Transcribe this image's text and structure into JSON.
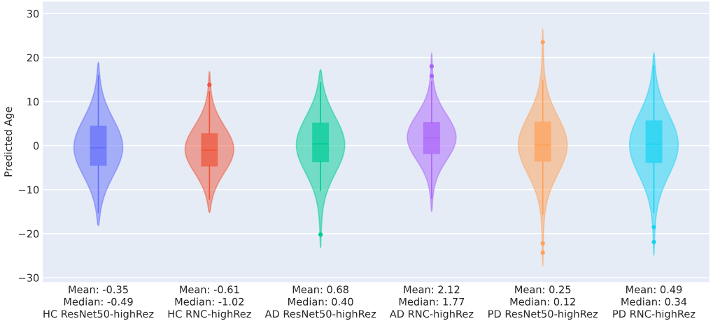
{
  "chart_data": {
    "type": "box",
    "ylabel": "Predicted Age",
    "categories": [
      "Mean: -0.35\nMedian: -0.49\nHC ResNet50-highRez",
      "Mean: -0.61\nMedian: -1.02\nHC RNC-highRez",
      "Mean: 0.68\nMedian: 0.40\nAD ResNet50-highRez",
      "Mean: 2.12\nMedian: 1.77\nAD RNC-highRez",
      "Mean: 0.25\nMedian: 0.12\nPD ResNet50-highRez",
      "Mean: 0.49\nMedian: 0.34\nPD RNC-highRez"
    ],
    "colors": [
      "#636efa",
      "#ef553b",
      "#00cc96",
      "#ab63fa",
      "#ffa15a",
      "#19d3f3"
    ],
    "boxes": [
      {
        "low": -15.2,
        "q1": -4.45,
        "median": -0.49,
        "q3": 4.4,
        "high": 15.9
      },
      {
        "low": -12.2,
        "q1": -4.6,
        "median": -1.02,
        "q3": 2.65,
        "high": 12.2,
        "outliers": [
          13.8
        ]
      },
      {
        "low": -10.2,
        "q1": -3.6,
        "median": 0.4,
        "q3": 5.1,
        "high": 14.3,
        "outliers": [
          -20.2
        ]
      },
      {
        "low": -12.0,
        "q1": -1.8,
        "median": 1.77,
        "q3": 5.2,
        "high": 14.6,
        "outliers": [
          15.8,
          18.0
        ]
      },
      {
        "low": -15.6,
        "q1": -3.5,
        "median": 0.12,
        "q3": 5.3,
        "high": 14.9,
        "outliers": [
          23.5,
          -22.2,
          -24.3
        ]
      },
      {
        "low": -15.2,
        "q1": -3.8,
        "median": 0.34,
        "q3": 5.6,
        "high": 18.1,
        "outliers": [
          -18.5,
          -21.9
        ]
      }
    ],
    "ylim": [
      -31,
      32.7
    ],
    "yticks": [
      -30,
      -20,
      -10,
      0,
      10,
      20,
      30
    ],
    "grid": "y"
  }
}
